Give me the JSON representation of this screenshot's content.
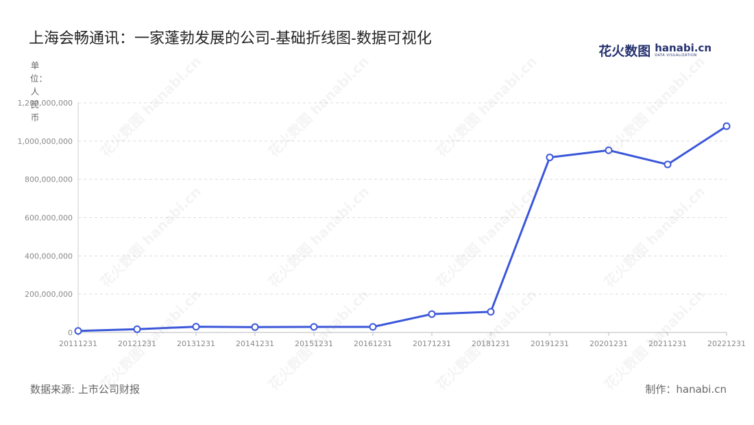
{
  "title": "上海会畅通讯：一家蓬勃发展的公司-基础折线图-数据可视化",
  "logo": {
    "cn": "花火数图",
    "en": "hanabi.cn",
    "sub": "DATA VISUALIZATION"
  },
  "unit_label": "单位：人民币",
  "footer": {
    "source": "数据来源: 上市公司财报",
    "maker": "制作：hanabi.cn"
  },
  "watermark_text": "花火数图 hanabi.cn",
  "chart_data": {
    "type": "line",
    "title": "上海会畅通讯：一家蓬勃发展的公司-基础折线图-数据可视化",
    "ylabel": "单位：人民币",
    "xlabel": "",
    "categories": [
      "20111231",
      "20121231",
      "20131231",
      "20141231",
      "20151231",
      "20161231",
      "20171231",
      "20181231",
      "20191231",
      "20201231",
      "20211231",
      "20221231"
    ],
    "series": [
      {
        "values": [
          8000000,
          17000000,
          30000000,
          28000000,
          29000000,
          29000000,
          96000000,
          108000000,
          915000000,
          952000000,
          878000000,
          1078000000
        ]
      }
    ],
    "ylim": [
      0,
      1200000000
    ],
    "yticks": [
      0,
      200000000,
      400000000,
      600000000,
      800000000,
      1000000000,
      1200000000
    ],
    "ytick_labels": [
      "0",
      "200,000,000",
      "400,000,000",
      "600,000,000",
      "800,000,000",
      "1,000,000,000",
      "1,200,000,000"
    ],
    "grid": true,
    "line_color": "#3a56d9"
  }
}
